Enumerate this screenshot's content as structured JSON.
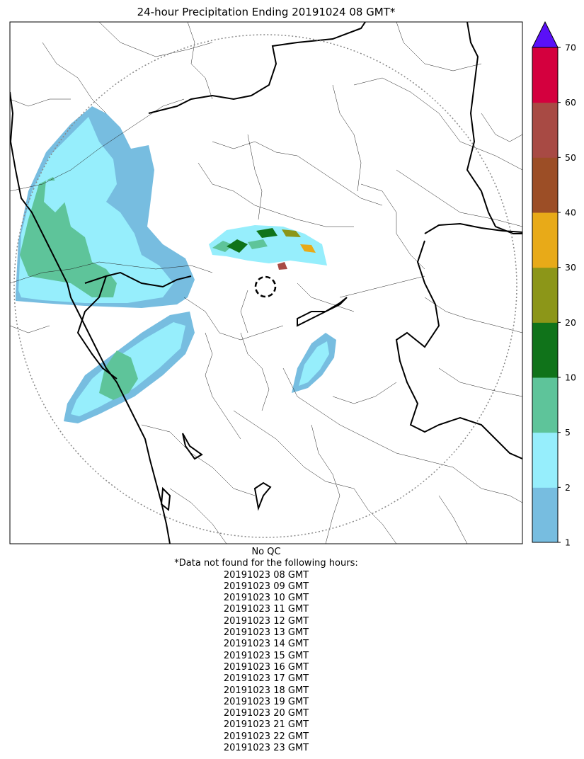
{
  "title": "24-hour Precipitation Ending 20191024 08 GMT*",
  "colorbar": {
    "ticks": [
      "1",
      "2",
      "5",
      "10",
      "20",
      "30",
      "40",
      "50",
      "60",
      "70"
    ],
    "colors": [
      "#77bde0",
      "#96eefc",
      "#5ec49a",
      "#10731a",
      "#8c9618",
      "#e8aa18",
      "#9c4e26",
      "#a84a44",
      "#d4003e"
    ],
    "extend_color": "#5a10f8"
  },
  "footer": {
    "qc": "No QC",
    "note": "*Data not found for the following hours:",
    "hours": [
      "20191023 08 GMT",
      "20191023 09 GMT",
      "20191023 10 GMT",
      "20191023 11 GMT",
      "20191023 12 GMT",
      "20191023 13 GMT",
      "20191023 14 GMT",
      "20191023 15 GMT",
      "20191023 16 GMT",
      "20191023 17 GMT",
      "20191023 18 GMT",
      "20191023 19 GMT",
      "20191023 20 GMT",
      "20191023 21 GMT",
      "20191023 22 GMT",
      "20191023 23 GMT"
    ]
  }
}
